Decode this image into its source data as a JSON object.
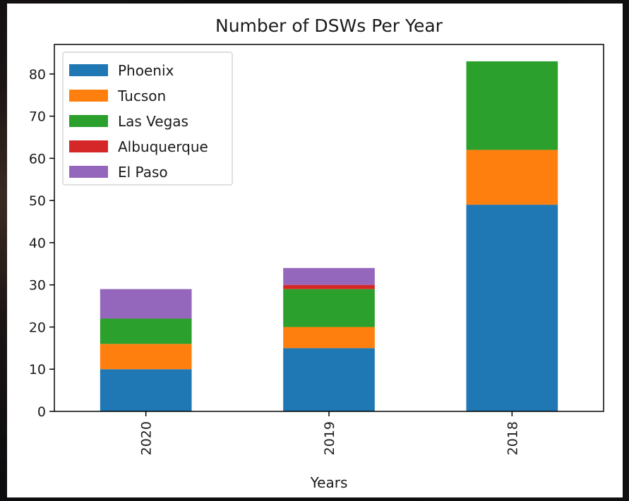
{
  "chart_data": {
    "type": "bar",
    "stacked": true,
    "title": "Number of DSWs Per Year",
    "xlabel": "Years",
    "ylabel": "",
    "categories": [
      "2020",
      "2019",
      "2018"
    ],
    "series": [
      {
        "name": "Phoenix",
        "values": [
          10,
          15,
          49
        ],
        "color": "#1f77b4"
      },
      {
        "name": "Tucson",
        "values": [
          6,
          5,
          13
        ],
        "color": "#ff7f0e"
      },
      {
        "name": "Las Vegas",
        "values": [
          6,
          9,
          21
        ],
        "color": "#2ca02c"
      },
      {
        "name": "Albuquerque",
        "values": [
          0,
          1,
          0
        ],
        "color": "#d62728"
      },
      {
        "name": "El Paso",
        "values": [
          7,
          4,
          0
        ],
        "color": "#9467bd"
      }
    ],
    "ylim": [
      0,
      87
    ],
    "yticks": [
      0,
      10,
      20,
      30,
      40,
      50,
      60,
      70,
      80
    ],
    "legend_position": "top-left",
    "grid": false
  }
}
